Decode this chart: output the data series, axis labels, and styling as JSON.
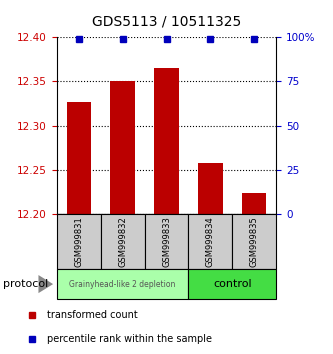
{
  "title": "GDS5113 / 10511325",
  "samples": [
    "GSM999831",
    "GSM999832",
    "GSM999833",
    "GSM999834",
    "GSM999835"
  ],
  "transformed_counts": [
    12.327,
    12.351,
    12.365,
    12.258,
    12.224
  ],
  "percentile_ranks": [
    99,
    99,
    99,
    99,
    99
  ],
  "ylim": [
    12.2,
    12.4
  ],
  "yticks": [
    12.2,
    12.25,
    12.3,
    12.35,
    12.4
  ],
  "y2lim": [
    0,
    100
  ],
  "y2ticks": [
    0,
    25,
    50,
    75,
    100
  ],
  "bar_color": "#bb0000",
  "percentile_color": "#0000bb",
  "group1_label": "Grainyhead-like 2 depletion",
  "group2_label": "control",
  "group1_color": "#aaffaa",
  "group2_color": "#44dd44",
  "group1_indices": [
    0,
    1,
    2
  ],
  "group2_indices": [
    3,
    4
  ],
  "left_tick_color": "#cc0000",
  "right_tick_color": "#0000cc",
  "legend_red_label": "transformed count",
  "legend_blue_label": "percentile rank within the sample",
  "protocol_label": "protocol",
  "sample_bg_color": "#cccccc",
  "title_fontsize": 10,
  "bar_width": 0.55
}
